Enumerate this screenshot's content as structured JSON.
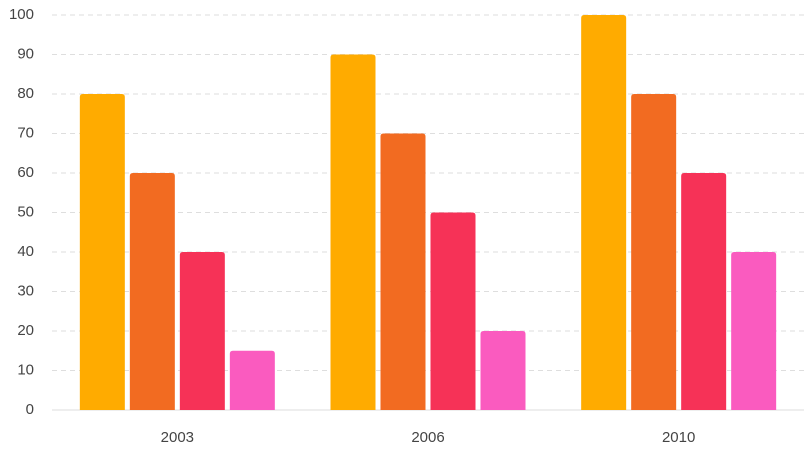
{
  "chart_data": {
    "type": "bar",
    "categories": [
      "2003",
      "2006",
      "2010"
    ],
    "series": [
      {
        "color": "#ffab00",
        "values": [
          80,
          90,
          100
        ]
      },
      {
        "color": "#f26b21",
        "values": [
          60,
          70,
          80
        ]
      },
      {
        "color": "#f63257",
        "values": [
          40,
          50,
          60
        ]
      },
      {
        "color": "#fa5bbf",
        "values": [
          15,
          20,
          40
        ]
      }
    ],
    "ylim": [
      0,
      100
    ],
    "yticks": [
      0,
      10,
      20,
      30,
      40,
      50,
      60,
      70,
      80,
      90,
      100
    ],
    "grid": true
  }
}
